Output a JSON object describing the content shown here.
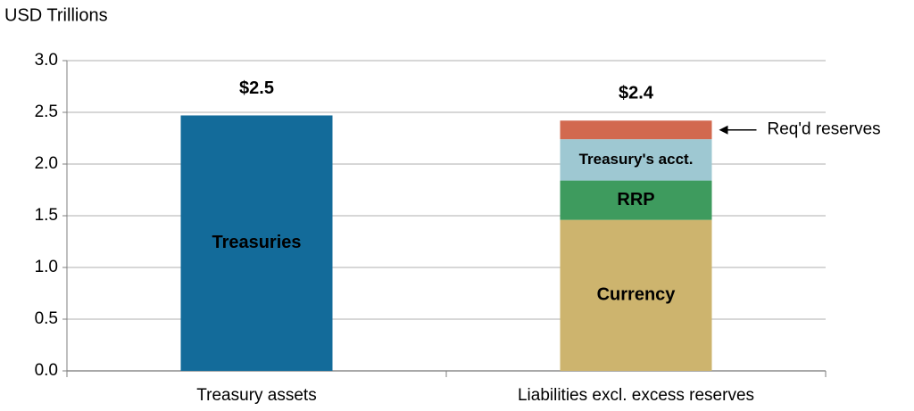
{
  "chart_data": {
    "type": "stacked_bar",
    "y_axis_title": "USD Trillions",
    "categories": [
      "Treasury assets",
      "Liabilities excl. excess reserves"
    ],
    "series": [
      {
        "name": "Treasuries",
        "color": "#136b9a",
        "label_color": "#ffffff",
        "values": [
          2.47,
          null
        ]
      },
      {
        "name": "Currency",
        "color": "#cdb46e",
        "label_color": "#000000",
        "values": [
          null,
          1.46
        ]
      },
      {
        "name": "RRP",
        "color": "#3e9b5e",
        "label_color": "#ffffff",
        "values": [
          null,
          0.38
        ]
      },
      {
        "name": "Treasury's acct.",
        "color": "#9ec8d2",
        "label_color": "#000000",
        "values": [
          null,
          0.4
        ]
      },
      {
        "name": "Req'd reserves",
        "color": "#d2694f",
        "label_color": "#000000",
        "label_outside": true,
        "values": [
          null,
          0.18
        ]
      }
    ],
    "total_labels": [
      "$2.5",
      "$2.4"
    ],
    "ylim": [
      0,
      3
    ],
    "yticks": [
      {
        "value": 0,
        "label": "0.0"
      },
      0.5,
      {
        "value": 1,
        "label": "1.0"
      },
      1.5,
      {
        "value": 2,
        "label": "2.0"
      },
      2.5,
      {
        "value": 3,
        "label": "3.0"
      }
    ],
    "grid": true
  }
}
